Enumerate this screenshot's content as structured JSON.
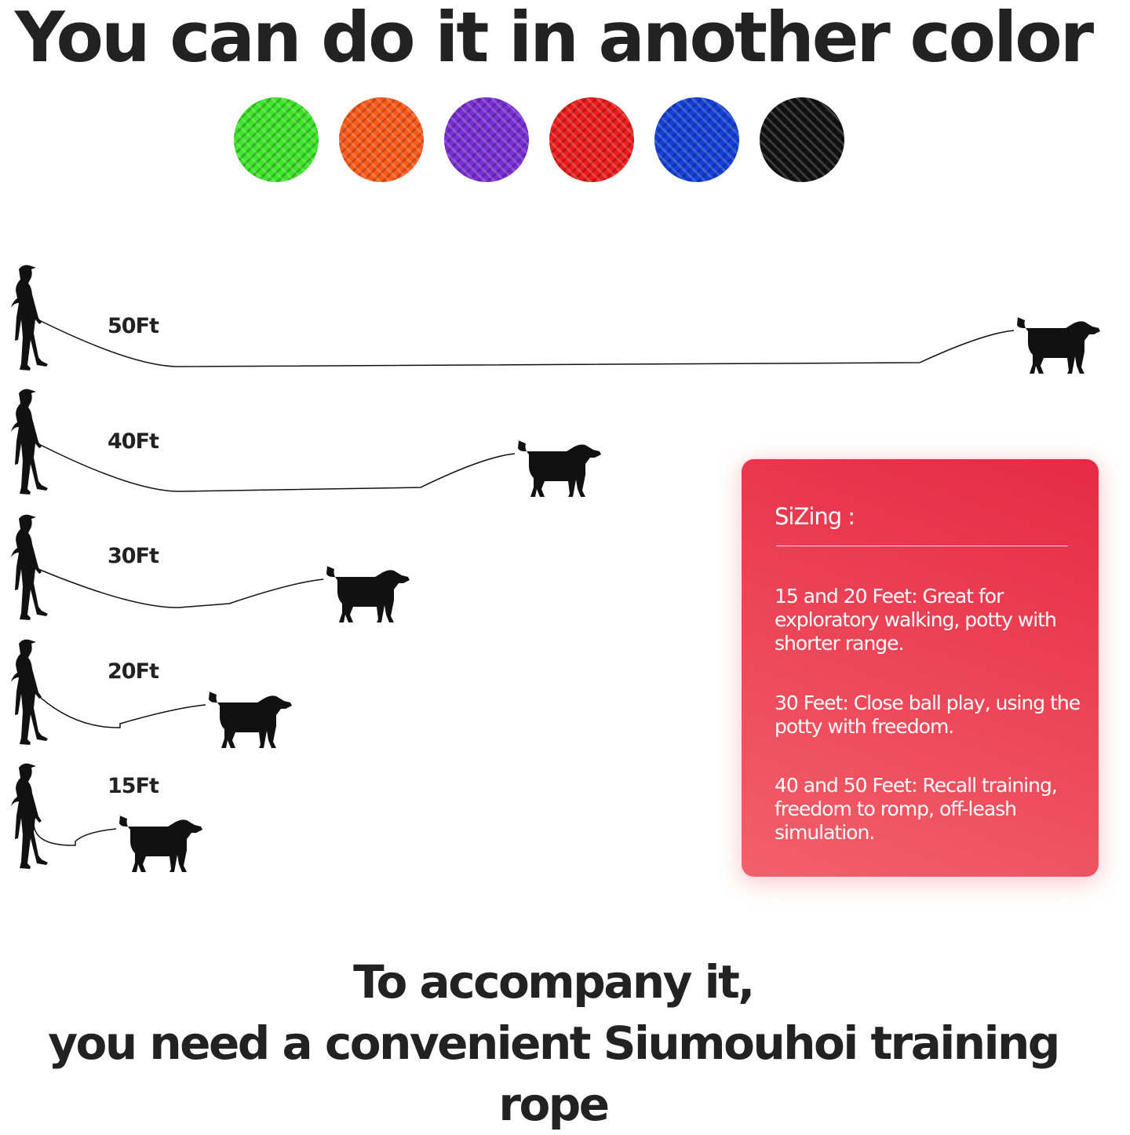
{
  "title": "You can do it in another color",
  "colors": [
    {
      "name": "green",
      "hex": "#3ee62a"
    },
    {
      "name": "orange",
      "hex": "#ff5a1a"
    },
    {
      "name": "purple",
      "hex": "#7a2fd6"
    },
    {
      "name": "red",
      "hex": "#ee1c1c"
    },
    {
      "name": "blue",
      "hex": "#1240d8"
    },
    {
      "name": "black",
      "hex": "#111111"
    }
  ],
  "lengths": [
    {
      "label": "50Ft"
    },
    {
      "label": "40Ft"
    },
    {
      "label": "30Ft"
    },
    {
      "label": "20Ft"
    },
    {
      "label": "15Ft"
    }
  ],
  "sizing": {
    "heading": "SiZing :",
    "items": [
      "15 and 20 Feet: Great for exploratory walking, potty with shorter range.",
      "30 Feet: Close ball play, using the potty with freedom.",
      "40 and 50 Feet: Recall training, freedom to romp, off-leash simulation."
    ],
    "accent": "#e62a45"
  },
  "bottom": {
    "line1": "To accompany it,",
    "line2": "you need a convenient Siumouhoi training rope"
  }
}
